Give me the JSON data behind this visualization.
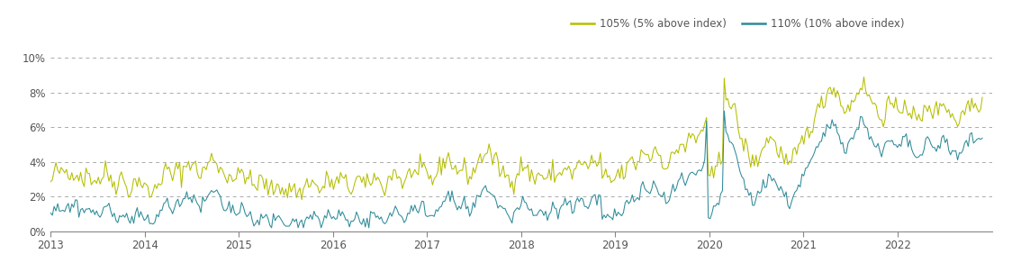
{
  "legend_105": "105% (5% above index)",
  "legend_110": "110% (10% above index)",
  "color_105": "#b5be00",
  "color_110": "#2e8b98",
  "bg_color": "#ffffff",
  "grid_color": "#aaaaaa",
  "spine_color": "#888888",
  "tick_color": "#555555",
  "ylim": [
    0.0,
    0.105
  ],
  "yticks": [
    0.0,
    0.02,
    0.04,
    0.06,
    0.08,
    0.1
  ],
  "ytick_labels": [
    "0%",
    "2%",
    "4%",
    "6%",
    "8%",
    "10%"
  ],
  "xtick_labels": [
    "2013",
    "2014",
    "2015",
    "2016",
    "2017",
    "2018",
    "2019",
    "2020",
    "2021",
    "2022"
  ],
  "series_105": [
    0.027,
    0.03,
    0.033,
    0.035,
    0.036,
    0.034,
    0.032,
    0.033,
    0.035,
    0.034,
    0.032,
    0.031,
    0.033,
    0.035,
    0.036,
    0.034,
    0.032,
    0.033,
    0.031,
    0.03,
    0.032,
    0.034,
    0.033,
    0.031,
    0.03,
    0.029,
    0.031,
    0.03,
    0.029,
    0.031,
    0.033,
    0.035,
    0.034,
    0.032,
    0.03,
    0.029,
    0.028,
    0.027,
    0.029,
    0.031,
    0.032,
    0.03,
    0.028,
    0.026,
    0.024,
    0.023,
    0.025,
    0.027,
    0.029,
    0.031,
    0.03,
    0.028,
    0.027,
    0.026,
    0.024,
    0.023,
    0.022,
    0.021,
    0.022,
    0.024,
    0.026,
    0.028,
    0.03,
    0.031,
    0.033,
    0.035,
    0.036,
    0.034,
    0.032,
    0.031,
    0.033,
    0.035,
    0.036,
    0.035,
    0.033,
    0.035,
    0.037,
    0.038,
    0.04,
    0.041,
    0.039,
    0.038,
    0.036,
    0.035,
    0.033,
    0.032,
    0.034,
    0.036,
    0.037,
    0.038,
    0.04,
    0.042,
    0.043,
    0.041,
    0.04,
    0.038,
    0.036,
    0.035,
    0.033,
    0.031,
    0.032,
    0.034,
    0.033,
    0.031,
    0.03,
    0.029,
    0.031,
    0.033,
    0.035,
    0.034,
    0.033,
    0.031,
    0.03,
    0.028,
    0.027,
    0.026,
    0.025,
    0.027,
    0.029,
    0.03,
    0.028,
    0.027,
    0.026,
    0.025,
    0.024,
    0.023,
    0.024,
    0.025,
    0.027,
    0.028,
    0.026,
    0.025,
    0.024,
    0.023,
    0.022,
    0.023,
    0.025,
    0.026,
    0.025,
    0.023,
    0.022,
    0.021,
    0.023,
    0.024,
    0.026,
    0.028,
    0.029,
    0.03,
    0.028,
    0.027,
    0.026,
    0.025,
    0.024,
    0.023,
    0.025,
    0.027,
    0.029,
    0.03,
    0.029,
    0.028,
    0.027,
    0.026,
    0.028,
    0.03,
    0.031,
    0.03,
    0.028,
    0.027,
    0.026,
    0.025,
    0.024,
    0.026,
    0.028,
    0.03,
    0.031,
    0.029,
    0.028,
    0.027,
    0.026,
    0.025,
    0.027,
    0.029,
    0.031,
    0.032,
    0.03,
    0.029,
    0.028,
    0.027,
    0.026,
    0.025,
    0.027,
    0.029,
    0.031,
    0.033,
    0.035,
    0.034,
    0.033,
    0.031,
    0.03,
    0.028,
    0.027,
    0.029,
    0.031,
    0.033,
    0.035,
    0.036,
    0.034,
    0.032,
    0.031,
    0.033,
    0.035,
    0.036,
    0.034,
    0.032,
    0.031,
    0.03,
    0.029,
    0.031,
    0.033,
    0.034,
    0.036,
    0.038,
    0.04,
    0.041,
    0.043,
    0.042,
    0.04,
    0.039,
    0.038,
    0.036,
    0.035,
    0.034,
    0.035,
    0.037,
    0.036,
    0.034,
    0.033,
    0.031,
    0.032,
    0.034,
    0.036,
    0.038,
    0.04,
    0.042,
    0.043,
    0.044,
    0.046,
    0.047,
    0.045,
    0.044,
    0.042,
    0.041,
    0.039,
    0.038,
    0.036,
    0.035,
    0.034,
    0.033,
    0.031,
    0.03,
    0.028,
    0.029,
    0.031,
    0.033,
    0.034,
    0.036,
    0.038,
    0.039,
    0.038,
    0.036,
    0.034,
    0.033,
    0.032,
    0.031,
    0.03,
    0.031,
    0.033,
    0.034,
    0.032,
    0.031,
    0.03,
    0.029,
    0.031,
    0.033,
    0.035,
    0.034,
    0.032,
    0.031,
    0.033,
    0.034,
    0.036,
    0.038,
    0.037,
    0.035,
    0.034,
    0.032,
    0.033,
    0.035,
    0.037,
    0.039,
    0.041,
    0.04,
    0.038,
    0.037,
    0.036,
    0.038,
    0.04,
    0.041,
    0.039,
    0.038,
    0.04,
    0.042,
    0.028,
    0.03,
    0.032,
    0.031,
    0.03,
    0.029,
    0.028,
    0.03,
    0.032,
    0.034,
    0.033,
    0.032,
    0.033,
    0.035,
    0.036,
    0.038,
    0.04,
    0.041,
    0.039,
    0.038,
    0.04,
    0.042,
    0.044,
    0.046,
    0.047,
    0.045,
    0.043,
    0.042,
    0.044,
    0.046,
    0.048,
    0.047,
    0.045,
    0.043,
    0.041,
    0.04,
    0.038,
    0.037,
    0.039,
    0.041,
    0.043,
    0.045,
    0.047,
    0.048,
    0.05,
    0.051,
    0.049,
    0.048,
    0.05,
    0.052,
    0.054,
    0.055,
    0.053,
    0.052,
    0.054,
    0.056,
    0.058,
    0.06,
    0.062,
    0.064,
    0.028,
    0.029,
    0.031,
    0.033,
    0.035,
    0.037,
    0.039,
    0.041,
    0.043,
    0.09,
    0.082,
    0.078,
    0.074,
    0.07,
    0.072,
    0.068,
    0.064,
    0.06,
    0.056,
    0.052,
    0.05,
    0.048,
    0.046,
    0.044,
    0.042,
    0.04,
    0.038,
    0.04,
    0.042,
    0.044,
    0.046,
    0.048,
    0.05,
    0.052,
    0.054,
    0.055,
    0.053,
    0.051,
    0.049,
    0.048,
    0.047,
    0.045,
    0.043,
    0.041,
    0.04,
    0.038,
    0.037,
    0.039,
    0.041,
    0.043,
    0.045,
    0.047,
    0.049,
    0.051,
    0.053,
    0.055,
    0.057,
    0.059,
    0.061,
    0.063,
    0.065,
    0.067,
    0.069,
    0.071,
    0.073,
    0.075,
    0.077,
    0.079,
    0.081,
    0.083,
    0.085,
    0.083,
    0.081,
    0.079,
    0.077,
    0.075,
    0.073,
    0.071,
    0.069,
    0.07,
    0.072,
    0.074,
    0.076,
    0.078,
    0.08,
    0.082,
    0.084,
    0.085,
    0.083,
    0.081,
    0.08,
    0.078,
    0.076,
    0.074,
    0.072,
    0.07,
    0.068,
    0.066,
    0.065,
    0.067,
    0.069,
    0.071,
    0.073,
    0.074,
    0.072,
    0.07,
    0.068,
    0.067,
    0.069,
    0.071,
    0.073,
    0.075,
    0.073,
    0.071,
    0.07,
    0.068,
    0.067,
    0.065,
    0.064,
    0.063,
    0.064,
    0.066,
    0.068,
    0.07,
    0.072,
    0.073,
    0.071,
    0.069,
    0.068,
    0.069,
    0.071,
    0.072,
    0.074,
    0.075,
    0.073,
    0.071,
    0.07,
    0.068,
    0.067,
    0.065,
    0.064,
    0.063,
    0.064,
    0.066,
    0.068,
    0.07,
    0.072,
    0.073,
    0.074,
    0.075,
    0.073,
    0.072,
    0.073,
    0.074,
    0.075,
    0.077
  ],
  "series_110": [
    0.01,
    0.011,
    0.013,
    0.015,
    0.016,
    0.014,
    0.013,
    0.012,
    0.013,
    0.015,
    0.014,
    0.012,
    0.014,
    0.016,
    0.017,
    0.015,
    0.013,
    0.014,
    0.012,
    0.011,
    0.012,
    0.014,
    0.013,
    0.011,
    0.01,
    0.009,
    0.011,
    0.01,
    0.009,
    0.011,
    0.013,
    0.015,
    0.014,
    0.012,
    0.01,
    0.009,
    0.008,
    0.007,
    0.009,
    0.011,
    0.012,
    0.01,
    0.008,
    0.007,
    0.006,
    0.005,
    0.007,
    0.009,
    0.01,
    0.012,
    0.011,
    0.009,
    0.008,
    0.007,
    0.006,
    0.005,
    0.004,
    0.004,
    0.005,
    0.007,
    0.008,
    0.01,
    0.012,
    0.013,
    0.015,
    0.016,
    0.017,
    0.015,
    0.013,
    0.012,
    0.014,
    0.016,
    0.017,
    0.016,
    0.014,
    0.016,
    0.018,
    0.019,
    0.02,
    0.022,
    0.02,
    0.018,
    0.017,
    0.016,
    0.014,
    0.013,
    0.015,
    0.017,
    0.018,
    0.019,
    0.021,
    0.023,
    0.024,
    0.022,
    0.02,
    0.019,
    0.017,
    0.016,
    0.014,
    0.012,
    0.013,
    0.015,
    0.014,
    0.012,
    0.011,
    0.01,
    0.012,
    0.014,
    0.015,
    0.014,
    0.013,
    0.011,
    0.01,
    0.008,
    0.007,
    0.006,
    0.005,
    0.007,
    0.009,
    0.01,
    0.008,
    0.007,
    0.006,
    0.005,
    0.004,
    0.004,
    0.005,
    0.006,
    0.008,
    0.009,
    0.007,
    0.006,
    0.005,
    0.004,
    0.003,
    0.004,
    0.006,
    0.007,
    0.006,
    0.004,
    0.003,
    0.003,
    0.004,
    0.005,
    0.007,
    0.009,
    0.01,
    0.011,
    0.009,
    0.008,
    0.007,
    0.006,
    0.005,
    0.004,
    0.006,
    0.008,
    0.01,
    0.011,
    0.01,
    0.008,
    0.007,
    0.006,
    0.008,
    0.01,
    0.011,
    0.01,
    0.008,
    0.007,
    0.006,
    0.005,
    0.004,
    0.006,
    0.008,
    0.009,
    0.01,
    0.008,
    0.007,
    0.006,
    0.005,
    0.004,
    0.006,
    0.008,
    0.01,
    0.011,
    0.009,
    0.008,
    0.007,
    0.006,
    0.005,
    0.004,
    0.006,
    0.008,
    0.01,
    0.012,
    0.014,
    0.013,
    0.012,
    0.01,
    0.009,
    0.007,
    0.006,
    0.008,
    0.01,
    0.012,
    0.014,
    0.015,
    0.013,
    0.011,
    0.01,
    0.012,
    0.014,
    0.015,
    0.013,
    0.011,
    0.01,
    0.009,
    0.008,
    0.01,
    0.012,
    0.013,
    0.015,
    0.017,
    0.019,
    0.02,
    0.022,
    0.021,
    0.019,
    0.018,
    0.017,
    0.015,
    0.014,
    0.013,
    0.014,
    0.016,
    0.015,
    0.013,
    0.012,
    0.01,
    0.011,
    0.013,
    0.015,
    0.017,
    0.019,
    0.021,
    0.022,
    0.023,
    0.025,
    0.026,
    0.024,
    0.022,
    0.021,
    0.019,
    0.017,
    0.016,
    0.014,
    0.013,
    0.012,
    0.011,
    0.009,
    0.008,
    0.007,
    0.008,
    0.01,
    0.012,
    0.013,
    0.015,
    0.017,
    0.018,
    0.017,
    0.015,
    0.013,
    0.012,
    0.011,
    0.01,
    0.009,
    0.01,
    0.012,
    0.013,
    0.011,
    0.01,
    0.009,
    0.008,
    0.01,
    0.012,
    0.014,
    0.013,
    0.011,
    0.01,
    0.012,
    0.013,
    0.015,
    0.017,
    0.016,
    0.014,
    0.013,
    0.011,
    0.012,
    0.014,
    0.016,
    0.018,
    0.02,
    0.019,
    0.017,
    0.016,
    0.015,
    0.017,
    0.019,
    0.02,
    0.018,
    0.017,
    0.019,
    0.021,
    0.007,
    0.008,
    0.01,
    0.009,
    0.008,
    0.007,
    0.006,
    0.008,
    0.01,
    0.012,
    0.011,
    0.01,
    0.012,
    0.014,
    0.015,
    0.017,
    0.019,
    0.02,
    0.018,
    0.017,
    0.019,
    0.021,
    0.023,
    0.025,
    0.026,
    0.024,
    0.022,
    0.021,
    0.023,
    0.025,
    0.027,
    0.026,
    0.024,
    0.022,
    0.02,
    0.019,
    0.017,
    0.016,
    0.018,
    0.02,
    0.022,
    0.024,
    0.026,
    0.027,
    0.029,
    0.03,
    0.028,
    0.027,
    0.028,
    0.03,
    0.032,
    0.033,
    0.031,
    0.03,
    0.032,
    0.034,
    0.035,
    0.037,
    0.039,
    0.065,
    0.007,
    0.008,
    0.01,
    0.012,
    0.014,
    0.016,
    0.018,
    0.02,
    0.022,
    0.065,
    0.058,
    0.055,
    0.051,
    0.048,
    0.05,
    0.046,
    0.042,
    0.038,
    0.035,
    0.031,
    0.028,
    0.026,
    0.024,
    0.022,
    0.02,
    0.018,
    0.016,
    0.018,
    0.02,
    0.022,
    0.024,
    0.026,
    0.028,
    0.03,
    0.032,
    0.033,
    0.031,
    0.029,
    0.028,
    0.027,
    0.026,
    0.024,
    0.022,
    0.02,
    0.019,
    0.017,
    0.016,
    0.018,
    0.02,
    0.022,
    0.024,
    0.026,
    0.028,
    0.03,
    0.032,
    0.034,
    0.036,
    0.038,
    0.04,
    0.042,
    0.044,
    0.046,
    0.048,
    0.05,
    0.052,
    0.054,
    0.056,
    0.058,
    0.06,
    0.062,
    0.064,
    0.062,
    0.06,
    0.058,
    0.056,
    0.054,
    0.052,
    0.05,
    0.048,
    0.049,
    0.051,
    0.053,
    0.055,
    0.057,
    0.059,
    0.061,
    0.063,
    0.064,
    0.062,
    0.06,
    0.059,
    0.057,
    0.055,
    0.053,
    0.051,
    0.049,
    0.047,
    0.045,
    0.044,
    0.046,
    0.048,
    0.05,
    0.052,
    0.053,
    0.051,
    0.049,
    0.048,
    0.047,
    0.048,
    0.05,
    0.052,
    0.054,
    0.052,
    0.05,
    0.049,
    0.047,
    0.046,
    0.044,
    0.043,
    0.042,
    0.043,
    0.045,
    0.047,
    0.049,
    0.051,
    0.052,
    0.05,
    0.048,
    0.047,
    0.048,
    0.05,
    0.051,
    0.053,
    0.054,
    0.052,
    0.05,
    0.049,
    0.047,
    0.046,
    0.044,
    0.043,
    0.042,
    0.043,
    0.045,
    0.047,
    0.049,
    0.051,
    0.052,
    0.053,
    0.054,
    0.052,
    0.051,
    0.052,
    0.053,
    0.054,
    0.055
  ]
}
